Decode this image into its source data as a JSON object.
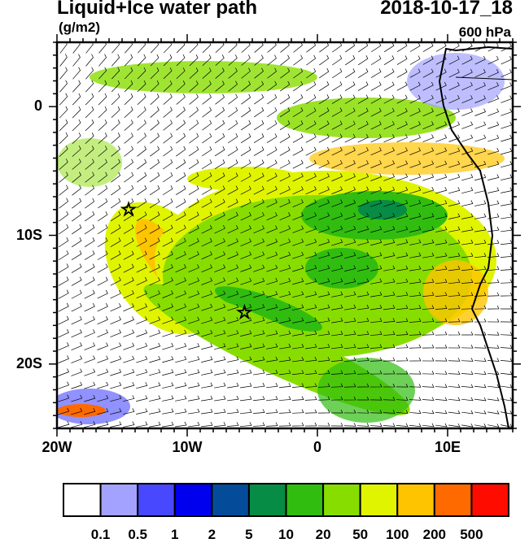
{
  "header": {
    "title": "Liquid+Ice water path",
    "units": "(g/m2)",
    "datetime": "2018-10-17_18",
    "level": "600 hPa"
  },
  "map": {
    "lon_range": [
      -20,
      15
    ],
    "lat_range": [
      -25,
      5
    ],
    "x_ticks": [
      {
        "lon": -20,
        "label": "20W"
      },
      {
        "lon": -10,
        "label": "10W"
      },
      {
        "lon": 0,
        "label": "0"
      },
      {
        "lon": 10,
        "label": "10E"
      }
    ],
    "y_ticks": [
      {
        "lat": 0,
        "label": "0"
      },
      {
        "lat": -10,
        "label": "10S"
      },
      {
        "lat": -20,
        "label": "20S"
      }
    ],
    "markers": [
      {
        "type": "star",
        "lon": -14.5,
        "lat": -8
      },
      {
        "type": "star",
        "lon": -5.6,
        "lat": -16
      }
    ]
  },
  "colorbar": {
    "colors": [
      "#ffffff",
      "#a3a3ff",
      "#4848ff",
      "#0000ee",
      "#044c9a",
      "#068c44",
      "#30bd10",
      "#88dd00",
      "#e0f400",
      "#ffc400",
      "#ff6a00",
      "#ff0c00"
    ],
    "labels": [
      "0.1",
      "0.5",
      "1",
      "2",
      "5",
      "10",
      "20",
      "50",
      "100",
      "200",
      "500"
    ]
  }
}
